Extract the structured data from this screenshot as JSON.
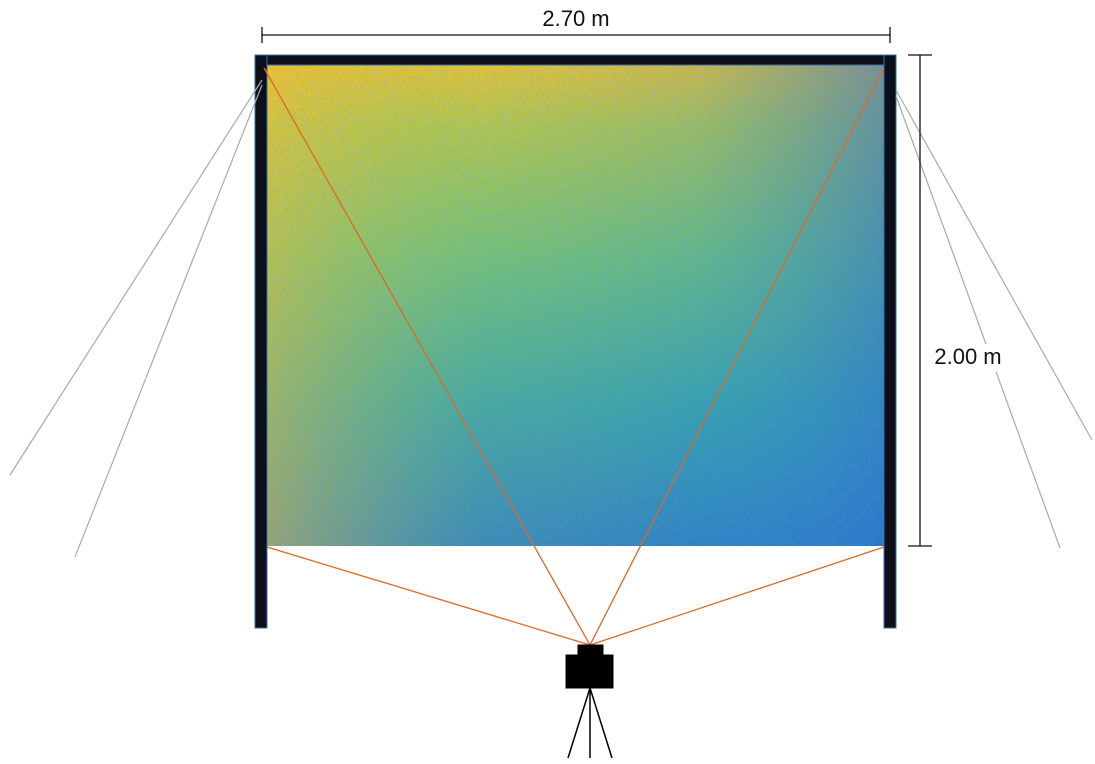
{
  "dimensions": {
    "width": "2.70 m",
    "height": "2.00 m"
  }
}
